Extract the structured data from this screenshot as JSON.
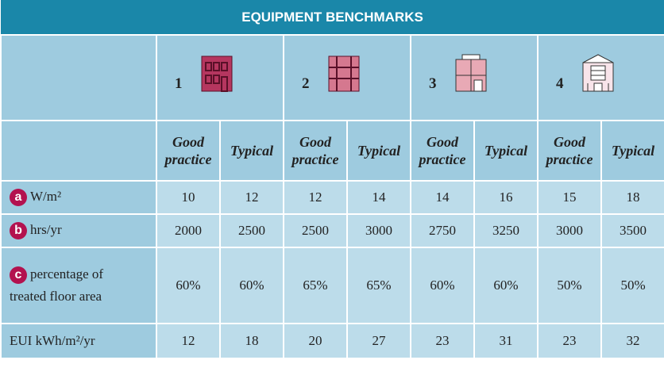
{
  "title": "EQUIPMENT BENCHMARKS",
  "buildings": [
    {
      "number": "1"
    },
    {
      "number": "2"
    },
    {
      "number": "3"
    },
    {
      "number": "4"
    }
  ],
  "subheaders": [
    "Good practice",
    "Typical"
  ],
  "rows": [
    {
      "badge": "a",
      "label": "W/m²",
      "cells": [
        "10",
        "12",
        "12",
        "14",
        "14",
        "16",
        "15",
        "18"
      ]
    },
    {
      "badge": "b",
      "label": "hrs/yr",
      "cells": [
        "2000",
        "2500",
        "2500",
        "3000",
        "2750",
        "3250",
        "3000",
        "3500"
      ]
    },
    {
      "badge": "c",
      "label": "percentage of treated floor area",
      "cells": [
        "60%",
        "60%",
        "65%",
        "65%",
        "60%",
        "60%",
        "50%",
        "50%"
      ]
    },
    {
      "label": "EUI kWh/m²/yr",
      "cells": [
        "12",
        "18",
        "20",
        "27",
        "23",
        "31",
        "23",
        "32"
      ]
    }
  ]
}
